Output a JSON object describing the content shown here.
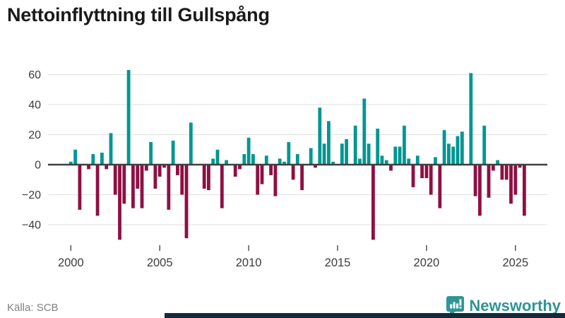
{
  "title": "Nettoinflyttning till Gullspång",
  "source": {
    "text": "Källa: SCB"
  },
  "logo": {
    "text": "Newsworthy",
    "icon": "newsworthy-pin-barchart-icon"
  },
  "colors": {
    "positive_bar": "#009691",
    "negative_bar": "#8e1043",
    "gridline": "#e3e3e3",
    "zero_line": "#404040",
    "axis_text": "#3d3d3d",
    "title_text": "#1a1a1a",
    "source_text": "#818181",
    "logo_teal": "#2e9596",
    "bottom_strip": "#14293e"
  },
  "chart_data": {
    "type": "bar",
    "title": "Nettoinflyttning till Gullspång",
    "xlabel": "",
    "ylabel": "",
    "frequency": "quarterly",
    "x_tick_labels": [
      "2000",
      "2005",
      "2010",
      "2015",
      "2020",
      "2025"
    ],
    "y_tick_labels": [
      "60",
      "40",
      "20",
      "0",
      "−20",
      "−40"
    ],
    "y_ticks": [
      60,
      40,
      20,
      0,
      -20,
      -40
    ],
    "ylim": [
      -55,
      70
    ],
    "grid": true,
    "legend": "none",
    "points": [
      {
        "t": "2000 Q1",
        "v": 2
      },
      {
        "t": "2000 Q2",
        "v": 10
      },
      {
        "t": "2000 Q3",
        "v": -30
      },
      {
        "t": "2000 Q4",
        "v": 0
      },
      {
        "t": "2001 Q1",
        "v": -3
      },
      {
        "t": "2001 Q2",
        "v": 7
      },
      {
        "t": "2001 Q3",
        "v": -34
      },
      {
        "t": "2001 Q4",
        "v": 8
      },
      {
        "t": "2002 Q1",
        "v": -3
      },
      {
        "t": "2002 Q2",
        "v": 21
      },
      {
        "t": "2002 Q3",
        "v": -20
      },
      {
        "t": "2002 Q4",
        "v": -50
      },
      {
        "t": "2003 Q1",
        "v": -26
      },
      {
        "t": "2003 Q2",
        "v": 63
      },
      {
        "t": "2003 Q3",
        "v": -29
      },
      {
        "t": "2003 Q4",
        "v": -16
      },
      {
        "t": "2004 Q1",
        "v": -29
      },
      {
        "t": "2004 Q2",
        "v": -4
      },
      {
        "t": "2004 Q3",
        "v": 15
      },
      {
        "t": "2004 Q4",
        "v": -16
      },
      {
        "t": "2005 Q1",
        "v": -8
      },
      {
        "t": "2005 Q2",
        "v": -2
      },
      {
        "t": "2005 Q3",
        "v": -30
      },
      {
        "t": "2005 Q4",
        "v": 16
      },
      {
        "t": "2006 Q1",
        "v": -7
      },
      {
        "t": "2006 Q2",
        "v": -20
      },
      {
        "t": "2006 Q3",
        "v": -49
      },
      {
        "t": "2006 Q4",
        "v": 28
      },
      {
        "t": "2007 Q1",
        "v": 0
      },
      {
        "t": "2007 Q2",
        "v": 0
      },
      {
        "t": "2007 Q3",
        "v": -16
      },
      {
        "t": "2007 Q4",
        "v": -17
      },
      {
        "t": "2008 Q1",
        "v": 4
      },
      {
        "t": "2008 Q2",
        "v": 10
      },
      {
        "t": "2008 Q3",
        "v": -29
      },
      {
        "t": "2008 Q4",
        "v": 3
      },
      {
        "t": "2009 Q1",
        "v": 0
      },
      {
        "t": "2009 Q2",
        "v": -8
      },
      {
        "t": "2009 Q3",
        "v": -3
      },
      {
        "t": "2009 Q4",
        "v": 7
      },
      {
        "t": "2010 Q1",
        "v": 18
      },
      {
        "t": "2010 Q2",
        "v": 7
      },
      {
        "t": "2010 Q3",
        "v": -20
      },
      {
        "t": "2010 Q4",
        "v": -13
      },
      {
        "t": "2011 Q1",
        "v": 6
      },
      {
        "t": "2011 Q2",
        "v": -7
      },
      {
        "t": "2011 Q3",
        "v": -21
      },
      {
        "t": "2011 Q4",
        "v": 4
      },
      {
        "t": "2012 Q1",
        "v": 2
      },
      {
        "t": "2012 Q2",
        "v": 15
      },
      {
        "t": "2012 Q3",
        "v": -10
      },
      {
        "t": "2012 Q4",
        "v": 7
      },
      {
        "t": "2013 Q1",
        "v": -17
      },
      {
        "t": "2013 Q2",
        "v": 0
      },
      {
        "t": "2013 Q3",
        "v": 11
      },
      {
        "t": "2013 Q4",
        "v": -2
      },
      {
        "t": "2014 Q1",
        "v": 38
      },
      {
        "t": "2014 Q2",
        "v": 14
      },
      {
        "t": "2014 Q3",
        "v": 29
      },
      {
        "t": "2014 Q4",
        "v": 2
      },
      {
        "t": "2015 Q1",
        "v": 0
      },
      {
        "t": "2015 Q2",
        "v": 14
      },
      {
        "t": "2015 Q3",
        "v": 17
      },
      {
        "t": "2015 Q4",
        "v": 0
      },
      {
        "t": "2016 Q1",
        "v": 26
      },
      {
        "t": "2016 Q2",
        "v": 4
      },
      {
        "t": "2016 Q3",
        "v": 44
      },
      {
        "t": "2016 Q4",
        "v": 14
      },
      {
        "t": "2017 Q1",
        "v": -50
      },
      {
        "t": "2017 Q2",
        "v": 24
      },
      {
        "t": "2017 Q3",
        "v": 6
      },
      {
        "t": "2017 Q4",
        "v": 3
      },
      {
        "t": "2018 Q1",
        "v": -4
      },
      {
        "t": "2018 Q2",
        "v": 12
      },
      {
        "t": "2018 Q3",
        "v": 12
      },
      {
        "t": "2018 Q4",
        "v": 26
      },
      {
        "t": "2019 Q1",
        "v": 4
      },
      {
        "t": "2019 Q2",
        "v": -15
      },
      {
        "t": "2019 Q3",
        "v": 6
      },
      {
        "t": "2019 Q4",
        "v": -9
      },
      {
        "t": "2020 Q1",
        "v": -9
      },
      {
        "t": "2020 Q2",
        "v": -20
      },
      {
        "t": "2020 Q3",
        "v": 5
      },
      {
        "t": "2020 Q4",
        "v": -29
      },
      {
        "t": "2021 Q1",
        "v": 23
      },
      {
        "t": "2021 Q2",
        "v": 14
      },
      {
        "t": "2021 Q3",
        "v": 12
      },
      {
        "t": "2021 Q4",
        "v": 19
      },
      {
        "t": "2022 Q1",
        "v": 22
      },
      {
        "t": "2022 Q2",
        "v": 0
      },
      {
        "t": "2022 Q3",
        "v": 61
      },
      {
        "t": "2022 Q4",
        "v": -21
      },
      {
        "t": "2023 Q1",
        "v": -34
      },
      {
        "t": "2023 Q2",
        "v": 26
      },
      {
        "t": "2023 Q3",
        "v": -22
      },
      {
        "t": "2023 Q4",
        "v": -4
      },
      {
        "t": "2024 Q1",
        "v": 3
      },
      {
        "t": "2024 Q2",
        "v": -10
      },
      {
        "t": "2024 Q3",
        "v": -10
      },
      {
        "t": "2024 Q4",
        "v": -26
      },
      {
        "t": "2025 Q1",
        "v": -20
      },
      {
        "t": "2025 Q2",
        "v": -2
      },
      {
        "t": "2025 Q3",
        "v": -34
      }
    ]
  }
}
